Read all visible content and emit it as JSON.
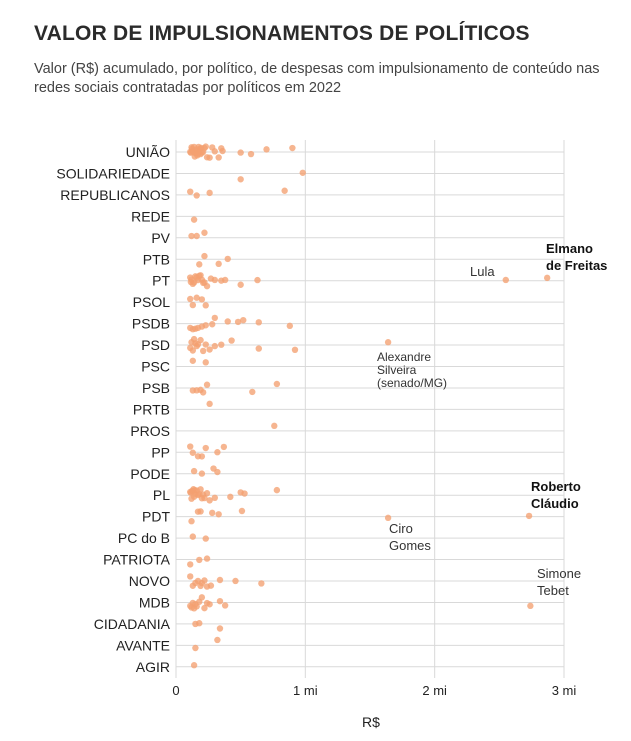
{
  "title": "VALOR DE IMPULSIONAMENTOS DE POLÍTICOS",
  "subtitle": "Valor (R$) acumulado, por político, de despesas com impulsionamento de conteúdo nas redes sociais contratadas por políticos em 2022",
  "colors": {
    "dot": "#f4a071",
    "grid": "#d9d9d9",
    "text": "#222222"
  },
  "chart_data": {
    "type": "scatter",
    "xlabel": "R$",
    "xlim": [
      0,
      3000000
    ],
    "x_ticks": [
      {
        "value": 0,
        "label": "0"
      },
      {
        "value": 1000000,
        "label": "1 mi"
      },
      {
        "value": 2000000,
        "label": "2 mi"
      },
      {
        "value": 3000000,
        "label": "3 mi"
      }
    ],
    "grid": true,
    "categories": [
      "UNIÃO",
      "SOLIDARIEDADE",
      "REPUBLICANOS",
      "REDE",
      "PV",
      "PTB",
      "PT",
      "PSOL",
      "PSDB",
      "PSD",
      "PSC",
      "PSB",
      "PRTB",
      "PROS",
      "PP",
      "PODE",
      "PL",
      "PDT",
      "PC do B",
      "PATRIOTA",
      "NOVO",
      "MDB",
      "CIDADANIA",
      "AVANTE",
      "AGIR"
    ],
    "points": {
      "UNIÃO": [
        110000,
        115000,
        120000,
        125000,
        130000,
        135000,
        140000,
        145000,
        150000,
        155000,
        160000,
        165000,
        170000,
        175000,
        180000,
        185000,
        190000,
        195000,
        200000,
        210000,
        220000,
        230000,
        240000,
        260000,
        280000,
        300000,
        330000,
        350000,
        360000,
        500000,
        580000,
        700000,
        900000
      ],
      "SOLIDARIEDADE": [
        500000,
        980000
      ],
      "REPUBLICANOS": [
        110000,
        160000,
        260000,
        840000
      ],
      "REDE": [
        140000
      ],
      "PV": [
        120000,
        160000,
        220000
      ],
      "PTB": [
        180000,
        220000,
        330000,
        400000
      ],
      "PT": [
        110000,
        115000,
        120000,
        130000,
        140000,
        150000,
        160000,
        170000,
        180000,
        190000,
        200000,
        210000,
        220000,
        240000,
        270000,
        300000,
        350000,
        380000,
        500000,
        630000,
        2550000,
        2870000
      ],
      "PSOL": [
        110000,
        130000,
        160000,
        200000,
        230000
      ],
      "PSDB": [
        110000,
        130000,
        150000,
        170000,
        200000,
        230000,
        280000,
        300000,
        400000,
        480000,
        520000,
        640000,
        880000
      ],
      "PSD": [
        110000,
        120000,
        130000,
        140000,
        150000,
        160000,
        170000,
        190000,
        210000,
        230000,
        260000,
        300000,
        350000,
        430000,
        640000,
        920000,
        1640000
      ],
      "PSC": [
        130000,
        230000
      ],
      "PSB": [
        130000,
        160000,
        190000,
        210000,
        240000,
        590000,
        780000
      ],
      "PRTB": [
        260000
      ],
      "PROS": [
        760000
      ],
      "PP": [
        110000,
        130000,
        170000,
        200000,
        230000,
        320000,
        370000
      ],
      "PODE": [
        140000,
        200000,
        290000,
        320000
      ],
      "PL": [
        110000,
        115000,
        120000,
        125000,
        130000,
        135000,
        140000,
        145000,
        150000,
        160000,
        170000,
        180000,
        190000,
        200000,
        210000,
        220000,
        240000,
        260000,
        300000,
        420000,
        500000,
        530000,
        780000
      ],
      "PDT": [
        120000,
        170000,
        190000,
        280000,
        330000,
        510000,
        1640000,
        2730000
      ],
      "PC do B": [
        130000,
        230000
      ],
      "PATRIOTA": [
        110000,
        180000,
        240000
      ],
      "NOVO": [
        110000,
        130000,
        150000,
        170000,
        190000,
        200000,
        220000,
        240000,
        270000,
        340000,
        460000,
        660000
      ],
      "MDB": [
        110000,
        120000,
        130000,
        140000,
        150000,
        160000,
        180000,
        200000,
        220000,
        240000,
        260000,
        340000,
        380000,
        2740000
      ],
      "CIDADANIA": [
        150000,
        180000,
        340000
      ],
      "AVANTE": [
        150000,
        320000
      ],
      "AGIR": [
        140000
      ]
    },
    "annotations": [
      {
        "lines": [
          "Elmano",
          "de Freitas"
        ],
        "party": "PT",
        "bold": true
      },
      {
        "lines": [
          "Lula"
        ],
        "party": "PT",
        "bold": false
      },
      {
        "lines": [
          "Alexandre",
          "Silveira",
          "(senado/MG)"
        ],
        "party": "PSD",
        "bold": false
      },
      {
        "lines": [
          "Roberto",
          "Cláudio"
        ],
        "party": "PDT",
        "bold": true
      },
      {
        "lines": [
          "Ciro",
          "Gomes"
        ],
        "party": "PDT",
        "bold": false
      },
      {
        "lines": [
          "Simone",
          "Tebet"
        ],
        "party": "MDB",
        "bold": false
      }
    ]
  }
}
